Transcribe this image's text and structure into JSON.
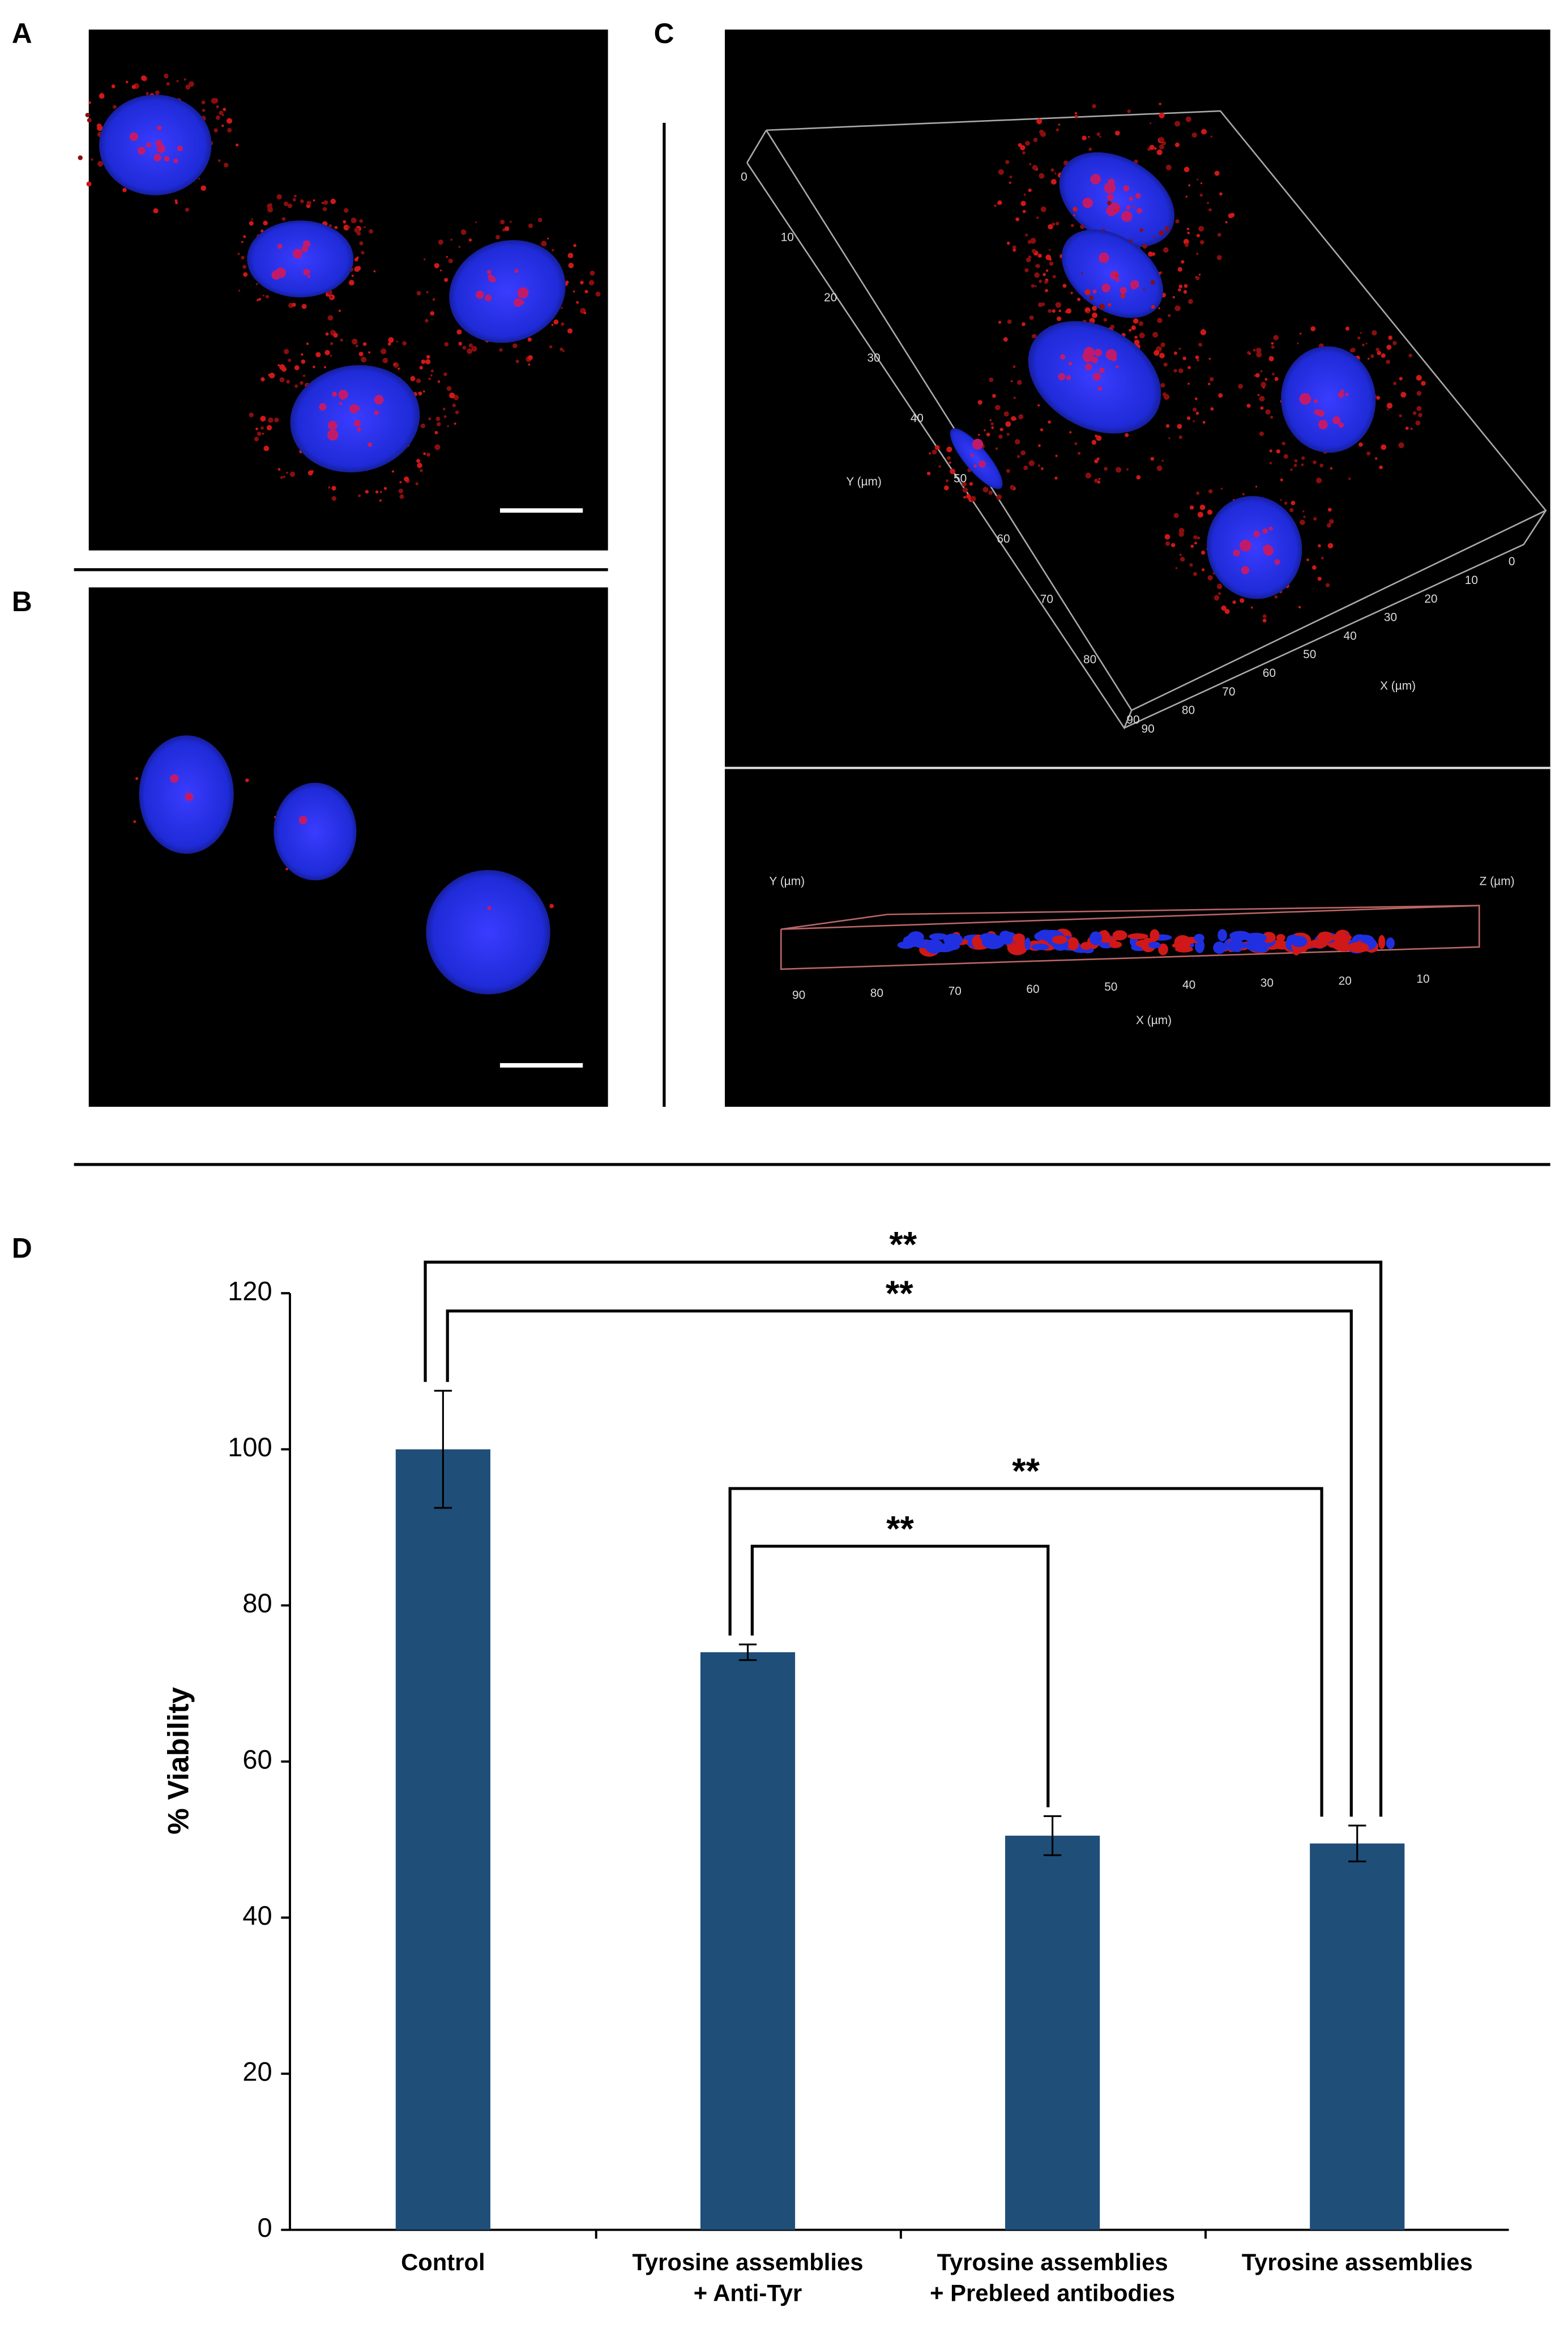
{
  "panels": {
    "a": "A",
    "b": "B",
    "c": "C",
    "d": "D"
  },
  "panel_c": {
    "top_view": {
      "y_label": "Y (µm)",
      "y_ticks": [
        0,
        10,
        20,
        30,
        40,
        50,
        60,
        70,
        80,
        90
      ],
      "x_label": "X (µm)",
      "x_ticks": [
        90,
        80,
        70,
        60,
        50,
        40,
        30,
        20,
        10,
        0
      ]
    },
    "side_view": {
      "y_label": "Y (µm)",
      "z_label": "Z (µm)",
      "x_label": "X (µm)",
      "x_ticks": [
        90,
        80,
        70,
        60,
        50,
        40,
        30,
        20,
        10
      ]
    }
  },
  "chart_data": {
    "type": "bar",
    "categories": [
      [
        "Control"
      ],
      [
        "Tyrosine assemblies",
        "+ Anti-Tyr"
      ],
      [
        "Tyrosine assemblies",
        "+ Prebleed antibodies"
      ],
      [
        "Tyrosine assemblies"
      ]
    ],
    "values": [
      100,
      74,
      50.5,
      49.5
    ],
    "errors": [
      7.5,
      1,
      2.5,
      2.3
    ],
    "color": "#1f4e79",
    "ylabel": "% Viability",
    "ylim": [
      0,
      120
    ],
    "yticks": [
      0,
      20,
      40,
      60,
      80,
      100,
      120
    ],
    "annotations": [
      "**",
      "**",
      "**",
      "**"
    ]
  }
}
